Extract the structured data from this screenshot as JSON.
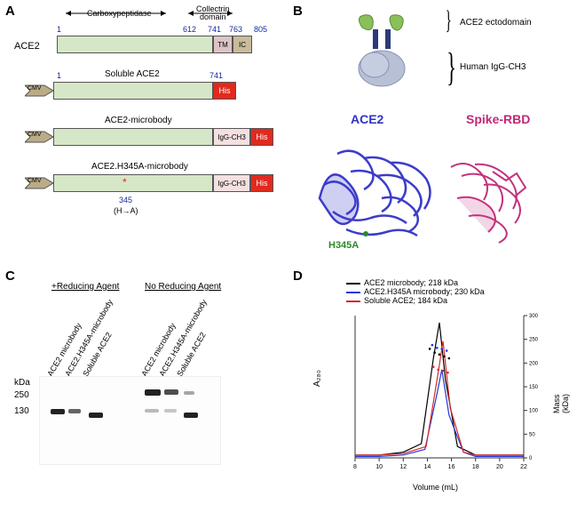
{
  "panelA": {
    "label": "A",
    "domain_carboxy": "Carboxypeptidase",
    "domain_collectrin": "Collectrin\ndomain",
    "ace2_label": "ACE2",
    "positions": {
      "p1": "1",
      "p612": "612",
      "p741": "741",
      "p763": "763",
      "p805": "805",
      "p345": "345",
      "p741b": "741"
    },
    "tm": "TM",
    "ic": "IC",
    "soluble": "Soluble ACE2",
    "microbody": "ACE2-microbody",
    "h345a_microbody": "ACE2.H345A-microbody",
    "his": "His",
    "igg": "IgG-CH3",
    "cmv": "CMV",
    "mutation": "(H→A)",
    "colors": {
      "ectodomain": "#d6e7c7",
      "tm": "#dcc4c4",
      "ic": "#c9bb9c",
      "igg": "#f4e0e0",
      "his": "#e12a1f",
      "cmv": "#b9ac87",
      "star": "#e12a1f"
    }
  },
  "panelB": {
    "label": "B",
    "ecto_label": "ACE2 ectodomain",
    "igg_label": "Human IgG-CH3",
    "ace2_struct": "ACE2",
    "spike_struct": "Spike-RBD",
    "h345a": "H345A",
    "colors": {
      "ace2": "#3232c8",
      "spike": "#c02878",
      "h345a": "#2a8a2a",
      "cartoon_green": "#8abf5a",
      "cartoon_blue": "#2d3a7a",
      "cartoon_grey": "#b8c0d6"
    }
  },
  "panelC": {
    "label": "C",
    "reducing": "+Reducing Agent",
    "noreducing": "No Reducing Agent",
    "lane1": "ACE2 microbody",
    "lane2": "ACE2.H345A-microbody",
    "lane3": "Soluble ACE2",
    "kda": "kDa",
    "m250": "250",
    "m130": "130"
  },
  "panelD": {
    "label": "D",
    "series": [
      {
        "name": "ACE2 microbody; 218 kDa",
        "color": "#000000"
      },
      {
        "name": "ACE2.H345A microbody; 230 kDa",
        "color": "#2338d8"
      },
      {
        "name": "Soluble ACE2; 184 kDa",
        "color": "#d82a2a"
      }
    ],
    "chart": {
      "type": "line",
      "xlim": [
        8,
        22
      ],
      "ylim_left": [
        0,
        1
      ],
      "ylim_right": [
        0,
        300
      ],
      "xticks": [
        8,
        10,
        12,
        14,
        16,
        18,
        20,
        22
      ],
      "yticks_right": [
        0,
        50,
        100,
        150,
        200,
        250,
        300
      ],
      "xlabel": "Volume (mL)",
      "ylabel_left": "A₂₈₀",
      "ylabel_right": "Mass (kDa)",
      "background": "#ffffff",
      "axis_color": "#333333",
      "fontsize_label": 9,
      "fontsize_tick": 8,
      "line_width": 1.2,
      "uv_curves": {
        "black": [
          [
            8,
            0.02
          ],
          [
            10,
            0.02
          ],
          [
            12,
            0.04
          ],
          [
            13.5,
            0.1
          ],
          [
            14.5,
            0.7
          ],
          [
            15.0,
            0.95
          ],
          [
            15.5,
            0.55
          ],
          [
            16.5,
            0.08
          ],
          [
            18,
            0.02
          ],
          [
            22,
            0.02
          ]
        ],
        "blue": [
          [
            8,
            0.01
          ],
          [
            10,
            0.01
          ],
          [
            12,
            0.02
          ],
          [
            13.8,
            0.06
          ],
          [
            14.8,
            0.45
          ],
          [
            15.2,
            0.62
          ],
          [
            15.8,
            0.3
          ],
          [
            17,
            0.04
          ],
          [
            18,
            0.01
          ],
          [
            22,
            0.01
          ]
        ],
        "red": [
          [
            8,
            0.02
          ],
          [
            10,
            0.02
          ],
          [
            12,
            0.03
          ],
          [
            13.9,
            0.08
          ],
          [
            14.9,
            0.6
          ],
          [
            15.3,
            0.82
          ],
          [
            15.9,
            0.35
          ],
          [
            17,
            0.04
          ],
          [
            18,
            0.02
          ],
          [
            22,
            0.02
          ]
        ]
      },
      "mass_dots": {
        "black": [
          [
            14.2,
            230
          ],
          [
            14.6,
            222
          ],
          [
            15.0,
            218
          ],
          [
            15.4,
            214
          ],
          [
            15.8,
            210
          ]
        ],
        "blue": [
          [
            14.4,
            238
          ],
          [
            14.8,
            232
          ],
          [
            15.2,
            230
          ],
          [
            15.6,
            226
          ]
        ],
        "red": [
          [
            14.5,
            192
          ],
          [
            14.9,
            186
          ],
          [
            15.3,
            184
          ],
          [
            15.7,
            180
          ]
        ]
      }
    }
  }
}
